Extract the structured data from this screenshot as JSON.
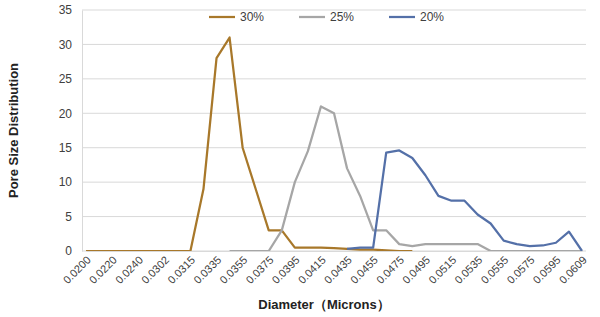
{
  "chart_data": {
    "type": "line",
    "x_label": "Diameter（Microns）",
    "y_label": "Pore Size Distribution",
    "categories": [
      "0.0200",
      null,
      "0.0220",
      null,
      "0.0240",
      null,
      "0.0302",
      null,
      "0.0315",
      null,
      "0.0335",
      null,
      "0.0355",
      null,
      "0.0375",
      null,
      "0.0395",
      null,
      "0.0415",
      null,
      "0.0435",
      null,
      "0.0455",
      null,
      "0.0475",
      null,
      "0.0495",
      null,
      "0.0515",
      null,
      "0.0535",
      null,
      "0.0555",
      null,
      "0.0575",
      null,
      "0.0595",
      null,
      "0.0609"
    ],
    "series": [
      {
        "name": "30%",
        "color": "#a8782a",
        "values": [
          0,
          0,
          0,
          0,
          0,
          0,
          0,
          0,
          0,
          9,
          28,
          31,
          15,
          9,
          3,
          3,
          0.5,
          0.5,
          0.5,
          0.4,
          0.3,
          0.2,
          0.2,
          0.1,
          0,
          0,
          null,
          null,
          null,
          null,
          null,
          null,
          null,
          null,
          null,
          null,
          null,
          null,
          null
        ]
      },
      {
        "name": "25%",
        "color": "#a6a6a6",
        "values": [
          null,
          null,
          null,
          null,
          null,
          null,
          null,
          null,
          null,
          null,
          null,
          0,
          0,
          0,
          0,
          3,
          10,
          14.5,
          21,
          20,
          12,
          8,
          3,
          3,
          1,
          0.7,
          1,
          1,
          1,
          1,
          1,
          0,
          0,
          0,
          0,
          0,
          0,
          0,
          0
        ]
      },
      {
        "name": "20%",
        "color": "#5470a8",
        "values": [
          null,
          null,
          null,
          null,
          null,
          null,
          null,
          null,
          null,
          null,
          null,
          null,
          null,
          null,
          null,
          null,
          null,
          null,
          null,
          null,
          0.3,
          0.5,
          0.5,
          14.3,
          14.6,
          13.5,
          11,
          8,
          7.3,
          7.3,
          5.3,
          4,
          1.5,
          1,
          0.7,
          0.8,
          1.2,
          2.8,
          0
        ]
      }
    ],
    "ylim": [
      0,
      35
    ],
    "yticks": [
      0,
      5,
      10,
      15,
      20,
      25,
      30,
      35
    ],
    "grid": true,
    "legend": "top"
  }
}
